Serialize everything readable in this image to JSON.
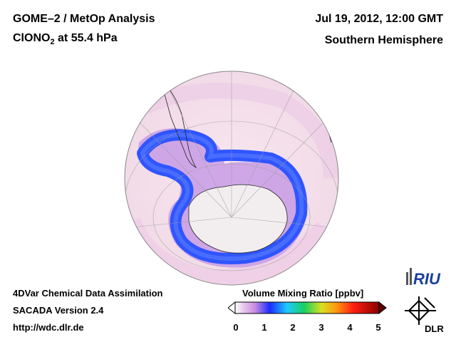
{
  "header": {
    "title_line1": "GOME–2 / MetOp Analysis",
    "title_line2_species": "ClONO",
    "title_line2_subscript": "2",
    "title_line2_rest": " at 55.4 hPa",
    "date": "Jul 19, 2012, 12:00 GMT",
    "region": "Southern Hemisphere"
  },
  "footer": {
    "line1": "4DVar Chemical Data Assimilation",
    "line2": "SACADA Version 2.4",
    "line3": "http://wdc.dlr.de"
  },
  "colorbar": {
    "title": "Volume Mixing Ratio [ppbv]",
    "ticks": [
      "0",
      "1",
      "2",
      "3",
      "4",
      "5"
    ],
    "range": [
      0,
      5
    ]
  },
  "logos": {
    "riu": "RIU",
    "dlr": "DLR"
  },
  "colors": {
    "background": "#ffffff",
    "globe_bg": "#f6e4ee",
    "low": "#ecc6e6",
    "mid": "#c58be0",
    "high_blue": "#2b4dff",
    "antarctica": "#f2eef0"
  }
}
